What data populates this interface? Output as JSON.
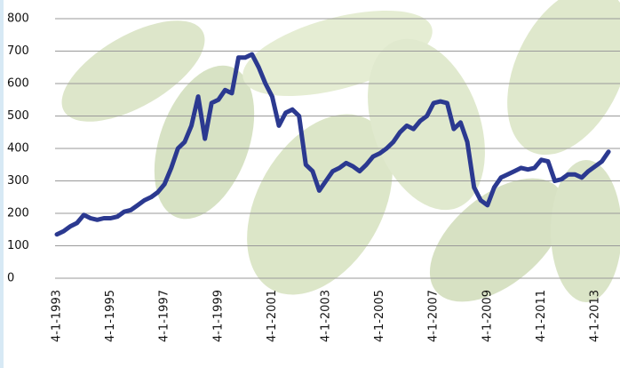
{
  "chart_data": {
    "type": "line",
    "x": [
      "4-1-1993",
      "7-1-1993",
      "10-1-1993",
      "1-1-1994",
      "4-1-1994",
      "7-1-1994",
      "10-1-1994",
      "1-1-1995",
      "4-1-1995",
      "7-1-1995",
      "10-1-1995",
      "1-1-1996",
      "4-1-1996",
      "7-1-1996",
      "10-1-1996",
      "1-1-1997",
      "4-1-1997",
      "7-1-1997",
      "10-1-1997",
      "1-1-1998",
      "4-1-1998",
      "7-1-1998",
      "10-1-1998",
      "1-1-1999",
      "4-1-1999",
      "7-1-1999",
      "10-1-1999",
      "1-1-2000",
      "4-1-2000",
      "7-1-2000",
      "10-1-2000",
      "1-1-2001",
      "4-1-2001",
      "7-1-2001",
      "10-1-2001",
      "1-1-2002",
      "4-1-2002",
      "7-1-2002",
      "10-1-2002",
      "1-1-2003",
      "4-1-2003",
      "7-1-2003",
      "10-1-2003",
      "1-1-2004",
      "4-1-2004",
      "7-1-2004",
      "10-1-2004",
      "1-1-2005",
      "4-1-2005",
      "7-1-2005",
      "10-1-2005",
      "1-1-2006",
      "4-1-2006",
      "7-1-2006",
      "10-1-2006",
      "1-1-2007",
      "4-1-2007",
      "7-1-2007",
      "10-1-2007",
      "1-1-2008",
      "4-1-2008",
      "7-1-2008",
      "10-1-2008",
      "1-1-2009",
      "4-1-2009",
      "7-1-2009",
      "10-1-2009",
      "1-1-2010",
      "4-1-2010",
      "7-1-2010",
      "10-1-2010",
      "1-1-2011",
      "4-1-2011",
      "7-1-2011",
      "10-1-2011",
      "1-1-2012",
      "4-1-2012",
      "7-1-2012",
      "10-1-2012",
      "1-1-2013",
      "4-1-2013",
      "7-1-2013",
      "10-1-2013"
    ],
    "series": [
      {
        "color": "#2b3990",
        "values": [
          135,
          145,
          160,
          170,
          195,
          185,
          180,
          185,
          185,
          190,
          205,
          210,
          225,
          240,
          250,
          265,
          290,
          340,
          400,
          420,
          470,
          560,
          430,
          540,
          550,
          580,
          570,
          680,
          680,
          690,
          650,
          600,
          560,
          470,
          510,
          520,
          500,
          350,
          330,
          270,
          300,
          330,
          340,
          355,
          345,
          330,
          350,
          375,
          385,
          400,
          420,
          450,
          470,
          460,
          485,
          500,
          540,
          545,
          540,
          460,
          480,
          420,
          280,
          240,
          225,
          280,
          310,
          320,
          330,
          340,
          335,
          340,
          365,
          360,
          300,
          305,
          320,
          320,
          310,
          330,
          345,
          360,
          390
        ]
      }
    ],
    "xticks": [
      "4-1-1993",
      "4-1-1995",
      "4-1-1997",
      "4-1-1999",
      "4-1-2001",
      "4-1-2003",
      "4-1-2005",
      "4-1-2007",
      "4-1-2009",
      "4-1-2011",
      "4-1-2013"
    ],
    "ylim": [
      0,
      800
    ],
    "yticks": [
      0,
      100,
      200,
      300,
      400,
      500,
      600,
      700,
      800
    ],
    "grid": true
  }
}
